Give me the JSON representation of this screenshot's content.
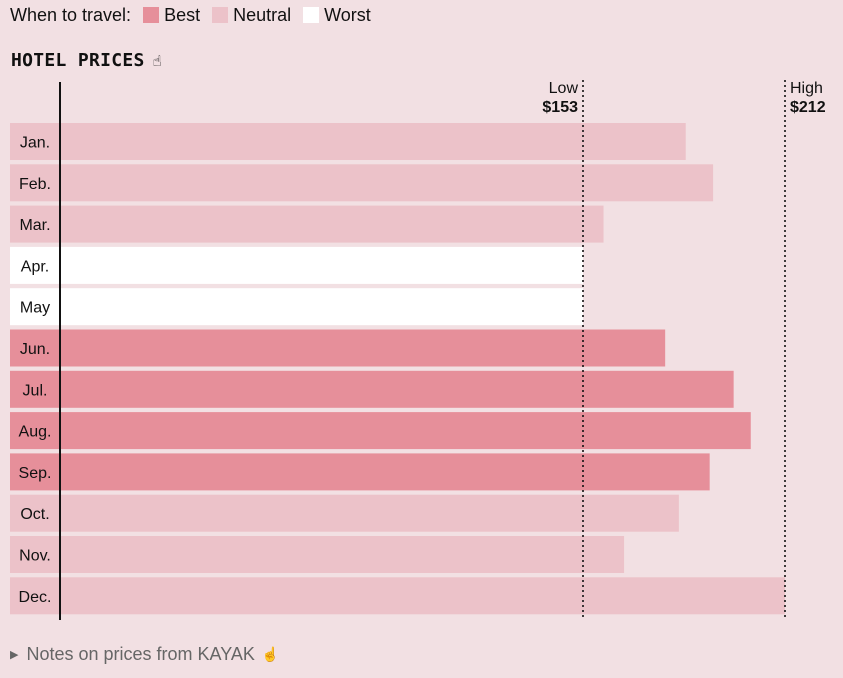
{
  "legend": {
    "label": "When to travel:",
    "items": [
      {
        "label": "Best",
        "color": "#e68f9a"
      },
      {
        "label": "Neutral",
        "color": "#ecc2c9"
      },
      {
        "label": "Worst",
        "color": "#ffffff"
      }
    ]
  },
  "title": "HOTEL PRICES",
  "title_icon": "hand-pointer-icon",
  "footer": {
    "label": "Notes on prices from KAYAK",
    "icon": "hand-pointer-icon"
  },
  "colors": {
    "background": "#f2e0e3",
    "best": "#e68f9a",
    "neutral": "#ecc2c9",
    "worst": "#ffffff",
    "axis": "#111111"
  },
  "chart_data": {
    "type": "bar",
    "orientation": "horizontal",
    "categories": [
      "Jan.",
      "Feb.",
      "Mar.",
      "Apr.",
      "May",
      "Jun.",
      "Jul.",
      "Aug.",
      "Sep.",
      "Oct.",
      "Nov.",
      "Dec."
    ],
    "values": [
      183,
      191,
      159,
      153,
      153,
      177,
      197,
      202,
      190,
      181,
      165,
      212
    ],
    "rating": [
      "Neutral",
      "Neutral",
      "Neutral",
      "Worst",
      "Worst",
      "Best",
      "Best",
      "Best",
      "Best",
      "Neutral",
      "Neutral",
      "Neutral"
    ],
    "reference_lines": [
      {
        "label": "Low",
        "value_label": "$153",
        "value": 153
      },
      {
        "label": "High",
        "value_label": "$212",
        "value": 212
      }
    ]
  }
}
